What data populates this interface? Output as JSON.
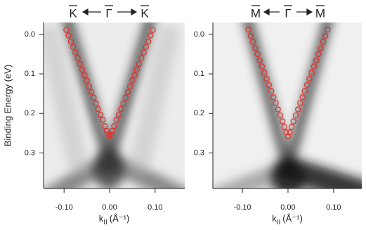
{
  "chart_data": [
    {
      "type": "scatter",
      "top_labels": [
        "K",
        "Γ",
        "K"
      ],
      "y_label": "Binding Energy (eV)",
      "x_label": "k",
      "x_label_sub": "II",
      "x_label_unit": "(Å⁻¹)",
      "xlim": [
        -0.145,
        0.165
      ],
      "ylim": [
        0.39,
        -0.03
      ],
      "xticks": [
        {
          "value": -0.1,
          "label": "-0.10"
        },
        {
          "value": 0,
          "label": "0.00"
        },
        {
          "value": 0.1,
          "label": "0.10"
        }
      ],
      "yticks": [
        {
          "value": 0,
          "label": "0.0"
        },
        {
          "value": 0.1,
          "label": "0.1"
        },
        {
          "value": 0.2,
          "label": "0.2"
        },
        {
          "value": 0.3,
          "label": "0.3"
        }
      ],
      "series": [
        {
          "color": "#e0302a",
          "x": [
            -0.095,
            -0.09,
            -0.085,
            -0.08,
            -0.075,
            -0.07,
            -0.065,
            -0.06,
            -0.055,
            -0.05,
            -0.045,
            -0.04,
            -0.035,
            -0.03,
            -0.025,
            -0.02,
            -0.015,
            -0.01,
            -0.006,
            -0.003,
            0,
            0.003,
            0.006,
            0.01,
            0.015,
            0.02,
            0.025,
            0.03,
            0.035,
            0.04,
            0.045,
            0.05,
            0.055,
            0.06,
            0.065,
            0.07,
            0.075,
            0.08,
            0.085,
            0.09,
            0.095
          ],
          "values": [
            -0.011,
            0.003,
            0.018,
            0.032,
            0.046,
            0.06,
            0.075,
            0.089,
            0.103,
            0.117,
            0.132,
            0.146,
            0.16,
            0.175,
            0.189,
            0.203,
            0.216,
            0.232,
            0.244,
            0.253,
            0.258,
            0.253,
            0.244,
            0.232,
            0.216,
            0.203,
            0.189,
            0.175,
            0.16,
            0.146,
            0.132,
            0.117,
            0.103,
            0.089,
            0.075,
            0.06,
            0.046,
            0.032,
            0.018,
            0.003,
            -0.011
          ]
        }
      ]
    },
    {
      "type": "scatter",
      "top_labels": [
        "M",
        "Γ",
        "M"
      ],
      "x_label": "k",
      "x_label_sub": "II",
      "x_label_unit": "(Å⁻¹)",
      "xlim": [
        -0.165,
        0.162
      ],
      "ylim": [
        0.39,
        -0.03
      ],
      "xticks": [
        {
          "value": -0.1,
          "label": "-0.10"
        },
        {
          "value": 0,
          "label": "0.00"
        },
        {
          "value": 0.1,
          "label": "0.10"
        }
      ],
      "yticks": [
        {
          "value": 0,
          "label": "0.0"
        },
        {
          "value": 0.1,
          "label": "0.1"
        },
        {
          "value": 0.2,
          "label": "0.2"
        },
        {
          "value": 0.3,
          "label": "0.3"
        }
      ],
      "series": [
        {
          "color": "#e0302a",
          "x": [
            -0.087,
            -0.082,
            -0.077,
            -0.072,
            -0.067,
            -0.062,
            -0.057,
            -0.052,
            -0.047,
            -0.042,
            -0.037,
            -0.032,
            -0.027,
            -0.022,
            -0.017,
            -0.012,
            -0.008,
            -0.004,
            0,
            0.004,
            0.008,
            0.012,
            0.017,
            0.022,
            0.027,
            0.032,
            0.037,
            0.042,
            0.047,
            0.052,
            0.057,
            0.062,
            0.067,
            0.072,
            0.077,
            0.082,
            0.087
          ],
          "values": [
            -0.012,
            0.004,
            0.019,
            0.035,
            0.05,
            0.066,
            0.081,
            0.097,
            0.112,
            0.128,
            0.143,
            0.159,
            0.174,
            0.19,
            0.205,
            0.22,
            0.234,
            0.248,
            0.258,
            0.248,
            0.234,
            0.22,
            0.205,
            0.19,
            0.174,
            0.159,
            0.143,
            0.128,
            0.112,
            0.097,
            0.081,
            0.066,
            0.05,
            0.035,
            0.019,
            0.004,
            -0.012
          ]
        }
      ]
    }
  ]
}
